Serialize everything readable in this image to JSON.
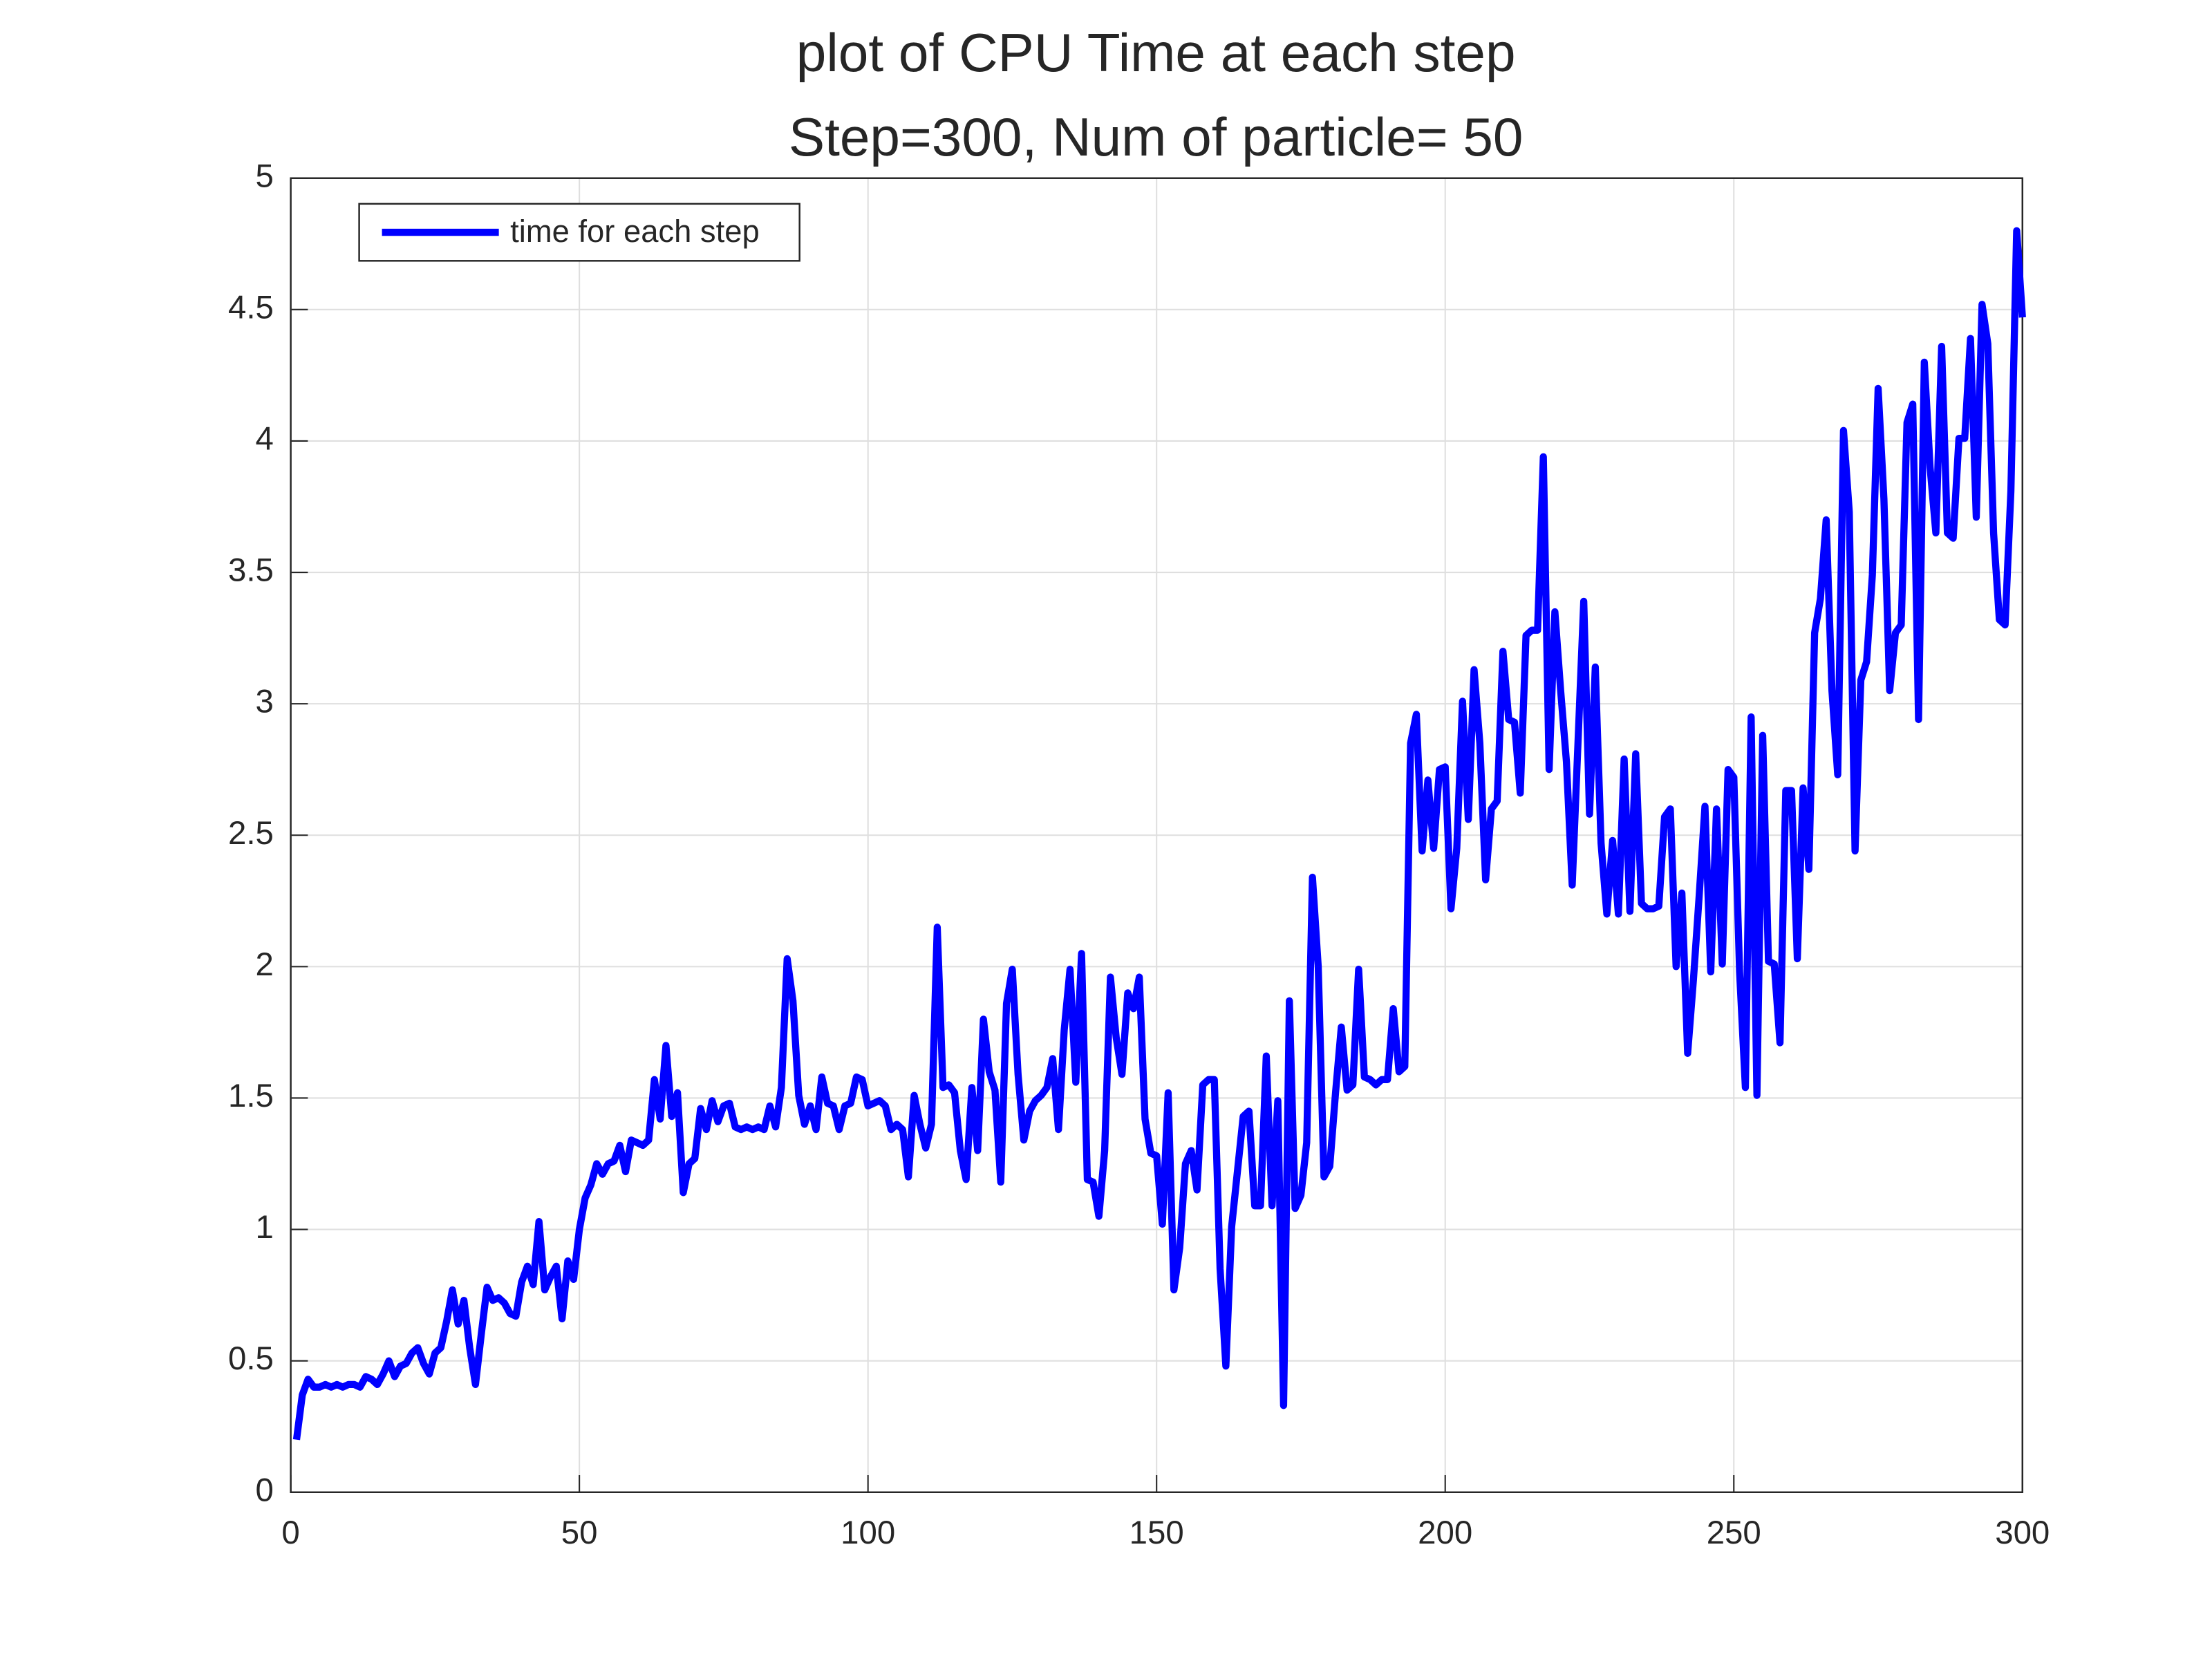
{
  "chart_data": {
    "type": "line",
    "title": "plot of CPU Time at each step",
    "subtitle": "Step=300, Num of particle= 50",
    "x": [
      1,
      2,
      3,
      4,
      5,
      6,
      7,
      8,
      9,
      10,
      11,
      12,
      13,
      14,
      15,
      16,
      17,
      18,
      19,
      20,
      21,
      22,
      23,
      24,
      25,
      26,
      27,
      28,
      29,
      30,
      31,
      32,
      33,
      34,
      35,
      36,
      37,
      38,
      39,
      40,
      41,
      42,
      43,
      44,
      45,
      46,
      47,
      48,
      49,
      50,
      51,
      52,
      53,
      54,
      55,
      56,
      57,
      58,
      59,
      60,
      61,
      62,
      63,
      64,
      65,
      66,
      67,
      68,
      69,
      70,
      71,
      72,
      73,
      74,
      75,
      76,
      77,
      78,
      79,
      80,
      81,
      82,
      83,
      84,
      85,
      86,
      87,
      88,
      89,
      90,
      91,
      92,
      93,
      94,
      95,
      96,
      97,
      98,
      99,
      100,
      101,
      102,
      103,
      104,
      105,
      106,
      107,
      108,
      109,
      110,
      111,
      112,
      113,
      114,
      115,
      116,
      117,
      118,
      119,
      120,
      121,
      122,
      123,
      124,
      125,
      126,
      127,
      128,
      129,
      130,
      131,
      132,
      133,
      134,
      135,
      136,
      137,
      138,
      139,
      140,
      141,
      142,
      143,
      144,
      145,
      146,
      147,
      148,
      149,
      150,
      151,
      152,
      153,
      154,
      155,
      156,
      157,
      158,
      159,
      160,
      161,
      162,
      163,
      164,
      165,
      166,
      167,
      168,
      169,
      170,
      171,
      172,
      173,
      174,
      175,
      176,
      177,
      178,
      179,
      180,
      181,
      182,
      183,
      184,
      185,
      186,
      187,
      188,
      189,
      190,
      191,
      192,
      193,
      194,
      195,
      196,
      197,
      198,
      199,
      200,
      201,
      202,
      203,
      204,
      205,
      206,
      207,
      208,
      209,
      210,
      211,
      212,
      213,
      214,
      215,
      216,
      217,
      218,
      219,
      220,
      221,
      222,
      223,
      224,
      225,
      226,
      227,
      228,
      229,
      230,
      231,
      232,
      233,
      234,
      235,
      236,
      237,
      238,
      239,
      240,
      241,
      242,
      243,
      244,
      245,
      246,
      247,
      248,
      249,
      250,
      251,
      252,
      253,
      254,
      255,
      256,
      257,
      258,
      259,
      260,
      261,
      262,
      263,
      264,
      265,
      266,
      267,
      268,
      269,
      270,
      271,
      272,
      273,
      274,
      275,
      276,
      277,
      278,
      279,
      280,
      281,
      282,
      283,
      284,
      285,
      286,
      287,
      288,
      289,
      290,
      291,
      292,
      293,
      294,
      295,
      296,
      297,
      298,
      299,
      300
    ],
    "series": [
      {
        "name": "time for each step",
        "color": "#0000ff",
        "values": [
          0.2,
          0.37,
          0.43,
          0.4,
          0.4,
          0.41,
          0.4,
          0.41,
          0.4,
          0.41,
          0.41,
          0.4,
          0.44,
          0.43,
          0.41,
          0.45,
          0.5,
          0.44,
          0.48,
          0.49,
          0.53,
          0.55,
          0.49,
          0.45,
          0.53,
          0.55,
          0.65,
          0.77,
          0.64,
          0.73,
          0.55,
          0.41,
          0.6,
          0.78,
          0.73,
          0.74,
          0.72,
          0.68,
          0.67,
          0.8,
          0.86,
          0.79,
          1.03,
          0.77,
          0.82,
          0.86,
          0.66,
          0.88,
          0.81,
          1.0,
          1.12,
          1.17,
          1.25,
          1.21,
          1.25,
          1.26,
          1.32,
          1.22,
          1.34,
          1.33,
          1.32,
          1.34,
          1.57,
          1.42,
          1.7,
          1.43,
          1.52,
          1.14,
          1.25,
          1.27,
          1.46,
          1.38,
          1.49,
          1.41,
          1.47,
          1.48,
          1.39,
          1.38,
          1.39,
          1.38,
          1.39,
          1.38,
          1.47,
          1.39,
          1.54,
          2.03,
          1.87,
          1.51,
          1.4,
          1.47,
          1.38,
          1.58,
          1.48,
          1.47,
          1.38,
          1.47,
          1.48,
          1.58,
          1.57,
          1.47,
          1.48,
          1.49,
          1.47,
          1.38,
          1.4,
          1.38,
          1.2,
          1.51,
          1.4,
          1.31,
          1.4,
          2.15,
          1.54,
          1.55,
          1.52,
          1.3,
          1.19,
          1.54,
          1.3,
          1.8,
          1.6,
          1.53,
          1.18,
          1.86,
          1.99,
          1.59,
          1.34,
          1.45,
          1.49,
          1.51,
          1.54,
          1.65,
          1.38,
          1.76,
          1.99,
          1.56,
          2.05,
          1.19,
          1.18,
          1.05,
          1.3,
          1.96,
          1.73,
          1.59,
          1.9,
          1.84,
          1.96,
          1.42,
          1.29,
          1.28,
          1.02,
          1.52,
          0.77,
          0.93,
          1.25,
          1.3,
          1.15,
          1.55,
          1.57,
          1.57,
          0.85,
          0.48,
          1.01,
          1.22,
          1.43,
          1.45,
          1.09,
          1.09,
          1.66,
          1.09,
          1.49,
          0.33,
          1.87,
          1.08,
          1.13,
          1.33,
          2.34,
          2.0,
          1.2,
          1.24,
          1.52,
          1.77,
          1.53,
          1.55,
          1.99,
          1.58,
          1.57,
          1.55,
          1.57,
          1.57,
          1.84,
          1.6,
          1.62,
          2.85,
          2.96,
          2.44,
          2.71,
          2.45,
          2.75,
          2.76,
          2.22,
          2.45,
          3.01,
          2.56,
          3.13,
          2.85,
          2.33,
          2.6,
          2.63,
          3.2,
          2.94,
          2.93,
          2.66,
          3.26,
          3.28,
          3.28,
          3.94,
          2.75,
          3.35,
          3.05,
          2.78,
          2.31,
          2.85,
          3.39,
          2.58,
          3.14,
          2.47,
          2.2,
          2.48,
          2.2,
          2.79,
          2.21,
          2.81,
          2.24,
          2.22,
          2.22,
          2.23,
          2.57,
          2.6,
          2.0,
          2.28,
          1.67,
          1.95,
          2.27,
          2.61,
          1.98,
          2.6,
          2.01,
          2.75,
          2.72,
          1.98,
          1.54,
          2.95,
          1.51,
          2.88,
          2.02,
          2.01,
          1.71,
          2.67,
          2.67,
          2.03,
          2.68,
          2.37,
          3.27,
          3.4,
          3.7,
          3.05,
          2.73,
          4.04,
          3.73,
          2.44,
          3.09,
          3.16,
          3.49,
          4.2,
          3.78,
          3.05,
          3.27,
          3.3,
          4.07,
          4.14,
          2.94,
          4.3,
          3.9,
          3.65,
          4.36,
          3.65,
          3.63,
          4.01,
          4.01,
          4.39,
          3.71,
          4.52,
          4.37,
          3.65,
          3.32,
          3.3,
          3.81,
          4.8,
          4.47
        ]
      }
    ],
    "xlim": [
      0,
      300
    ],
    "xticks": [
      0,
      50,
      100,
      150,
      200,
      250,
      300
    ],
    "ylim": [
      0,
      5
    ],
    "yticks": [
      0,
      0.5,
      1,
      1.5,
      2,
      2.5,
      3,
      3.5,
      4,
      4.5,
      5
    ],
    "grid": true,
    "legend": "northwest"
  }
}
